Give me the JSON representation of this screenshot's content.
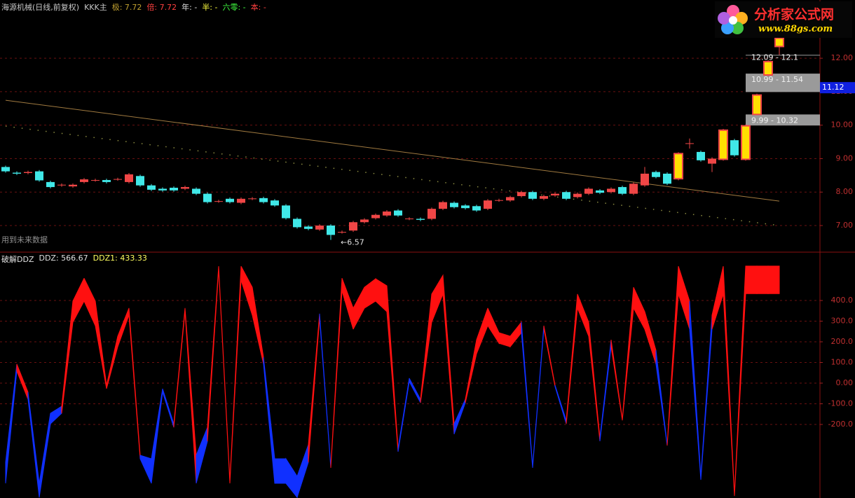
{
  "header": [
    {
      "text": "海源机械(日线,前复权)",
      "color": "#c8c8c8"
    },
    {
      "text": "KKK主",
      "color": "#c8c8c8"
    },
    {
      "text": "极: 7.72",
      "color": "#c0a030"
    },
    {
      "text": "倍: 7.72",
      "color": "#ff4040"
    },
    {
      "text": "年: -",
      "color": "#e0e0e0"
    },
    {
      "text": "半: -",
      "color": "#ffff40"
    },
    {
      "text": "六零: -",
      "color": "#40ff40"
    },
    {
      "text": "本: -",
      "color": "#ff4040"
    }
  ],
  "logo": {
    "title": "分析家公式网",
    "url": "www.88gs.com"
  },
  "footer_note": "用到未来数据",
  "lower_header": [
    {
      "text": "破解DDZ",
      "color": "#e0e0e0"
    },
    {
      "text": "DDZ: 566.67",
      "color": "#e0e0e0"
    },
    {
      "text": "DDZ1: 433.33",
      "color": "#ffff60"
    }
  ],
  "chart_data": [
    {
      "type": "candlestick",
      "open": [
        8.75,
        8.58,
        8.57,
        8.62,
        8.3,
        8.2,
        8.17,
        8.3,
        8.35,
        8.36,
        8.38,
        8.3,
        8.48,
        8.2,
        8.1,
        8.13,
        8.1,
        8.1,
        7.95,
        7.72,
        7.8,
        7.68,
        7.8,
        7.82,
        7.75,
        7.6,
        7.2,
        6.97,
        6.88,
        7.0,
        6.8,
        6.85,
        7.1,
        7.22,
        7.3,
        7.45,
        7.2,
        7.2,
        7.2,
        7.5,
        7.68,
        7.6,
        7.58,
        7.5,
        7.75,
        7.75,
        7.88,
        8.0,
        7.8,
        7.9,
        8.0,
        7.85,
        7.95,
        8.05,
        8.0,
        8.15,
        7.95,
        8.2,
        8.6,
        8.55,
        8.4,
        9.45,
        9.2,
        8.85,
        8.98,
        9.55,
        8.98,
        10.32,
        11.5,
        12.35
      ],
      "high": [
        8.79,
        8.62,
        8.64,
        8.66,
        8.34,
        8.26,
        8.26,
        8.42,
        8.4,
        8.4,
        8.43,
        8.57,
        8.52,
        8.24,
        8.14,
        8.17,
        8.19,
        8.14,
        7.99,
        7.77,
        7.84,
        7.84,
        7.85,
        7.86,
        7.79,
        7.64,
        7.24,
        7.01,
        7.04,
        7.04,
        6.85,
        7.14,
        7.22,
        7.36,
        7.46,
        7.49,
        7.25,
        7.24,
        7.54,
        7.74,
        7.72,
        7.64,
        7.62,
        7.79,
        7.8,
        7.89,
        8.04,
        8.04,
        7.92,
        7.99,
        8.04,
        7.99,
        8.14,
        8.09,
        8.14,
        8.19,
        8.29,
        8.75,
        8.64,
        8.59,
        9.19,
        9.6,
        9.24,
        9.04,
        9.89,
        9.59,
        10.02,
        10.94,
        11.94,
        12.64
      ],
      "low": [
        8.58,
        8.51,
        8.53,
        8.31,
        8.11,
        8.16,
        8.13,
        8.26,
        8.31,
        8.26,
        8.34,
        8.26,
        8.16,
        8.03,
        8.01,
        8.01,
        8.06,
        7.91,
        7.66,
        7.68,
        7.66,
        7.64,
        7.76,
        7.66,
        7.56,
        7.18,
        6.91,
        6.86,
        6.84,
        6.57,
        6.76,
        6.81,
        7.06,
        7.18,
        7.26,
        7.26,
        7.16,
        7.13,
        7.16,
        7.46,
        7.51,
        7.48,
        7.41,
        7.46,
        7.71,
        7.71,
        7.84,
        7.76,
        7.76,
        7.86,
        7.76,
        7.81,
        7.91,
        7.94,
        7.96,
        7.91,
        7.91,
        8.16,
        8.41,
        8.21,
        8.35,
        9.3,
        8.91,
        8.6,
        8.94,
        9.06,
        8.94,
        10.3,
        11.46,
        12.1
      ],
      "close": [
        8.62,
        8.55,
        8.6,
        8.35,
        8.15,
        8.22,
        8.22,
        8.38,
        8.36,
        8.3,
        8.39,
        8.53,
        8.2,
        8.07,
        8.05,
        8.05,
        8.15,
        7.95,
        7.7,
        7.73,
        7.7,
        7.8,
        7.81,
        7.7,
        7.6,
        7.22,
        6.95,
        6.9,
        7.0,
        6.72,
        6.81,
        7.1,
        7.18,
        7.32,
        7.42,
        7.3,
        7.21,
        7.17,
        7.5,
        7.7,
        7.55,
        7.52,
        7.45,
        7.75,
        7.76,
        7.85,
        8.0,
        7.8,
        7.88,
        7.95,
        7.8,
        7.95,
        8.1,
        7.98,
        8.1,
        7.95,
        8.25,
        8.55,
        8.45,
        8.25,
        9.15,
        9.46,
        8.95,
        9.0,
        9.85,
        9.1,
        9.98,
        10.9,
        11.9,
        12.6
      ],
      "up_color": "#f04646",
      "down_color": "#40e8e8",
      "limit_up_color": "#ffe000",
      "ylim": [
        6.205,
        13.74
      ],
      "yticks": [
        {
          "value": 7,
          "label": "7.00"
        },
        {
          "value": 8,
          "label": "8.00"
        },
        {
          "value": 9,
          "label": "9.00"
        },
        {
          "value": 10,
          "label": "10.00"
        },
        {
          "value": 11,
          "label": "11.00"
        },
        {
          "value": 12,
          "label": "12.00"
        }
      ],
      "grid": true,
      "lines": [
        {
          "values": [
            10.745,
            7.73
          ],
          "color": "#a07a40",
          "style": "solid"
        },
        {
          "values": [
            9.97,
            7.0
          ],
          "color": "#8a8a40",
          "style": "dotted"
        }
      ],
      "zones": [
        {
          "low": 9.99,
          "high": 10.32,
          "label": "9.99 - 10.32"
        },
        {
          "low": 10.99,
          "high": 11.54,
          "label": "10.99 - 11.54"
        },
        {
          "low": 12.09,
          "high": 12.1,
          "label": "12.09 - 12.1"
        }
      ],
      "price_marker": {
        "value": 11.12,
        "label": "11.12",
        "color": "#1020e0"
      },
      "annotations": [
        {
          "value": 6.57,
          "label": "←6.57"
        }
      ]
    },
    {
      "type": "band",
      "series": [
        {
          "name": "DDZ",
          "values": [
            -383,
            92,
            -44,
            -485,
            -146,
            -112,
            397,
            508,
            397,
            -10,
            227,
            363,
            -349,
            -366,
            -27,
            -197,
            363,
            -349,
            -214,
            566,
            -468,
            566,
            464,
            125,
            -366,
            -366,
            -451,
            -298,
            336,
            -400,
            508,
            363,
            464,
            505,
            471,
            -315,
            24,
            -78,
            431,
            522,
            -197,
            -78,
            210,
            363,
            244,
            227,
            295,
            -400,
            278,
            -10,
            -180,
            431,
            295,
            -264,
            210,
            -173,
            464,
            346,
            159,
            -298,
            566,
            397,
            -451,
            329,
            566,
            -536,
            566.67,
            566.67,
            566.67,
            566.67
          ]
        },
        {
          "name": "DDZ1",
          "values": [
            -485,
            58,
            -78,
            -553,
            -197,
            -146,
            295,
            397,
            278,
            -27,
            176,
            329,
            -366,
            -485,
            -44,
            -214,
            346,
            -485,
            -281,
            549,
            -485,
            498,
            329,
            92,
            -485,
            -485,
            -553,
            -383,
            312,
            -410,
            447,
            261,
            363,
            397,
            346,
            -332,
            7,
            -95,
            295,
            431,
            -247,
            -95,
            142,
            278,
            193,
            176,
            244,
            -410,
            261,
            -17,
            -197,
            363,
            227,
            -281,
            176,
            -180,
            363,
            261,
            92,
            -302,
            431,
            261,
            -468,
            261,
            431,
            -546,
            433.33,
            433.33,
            433.33,
            433.33
          ]
        }
      ],
      "up_color": "#ff1010",
      "down_color": "#1030ff",
      "ylim": [
        -556,
        634
      ],
      "yticks": [
        {
          "value": 400,
          "label": "400.0"
        },
        {
          "value": 300,
          "label": "300.0"
        },
        {
          "value": 200,
          "label": "200.0"
        },
        {
          "value": 100,
          "label": "100.0"
        },
        {
          "value": 0,
          "label": "0.00"
        },
        {
          "value": -100,
          "label": "-100.0"
        },
        {
          "value": -200,
          "label": "-200.0"
        }
      ],
      "grid": true
    }
  ]
}
